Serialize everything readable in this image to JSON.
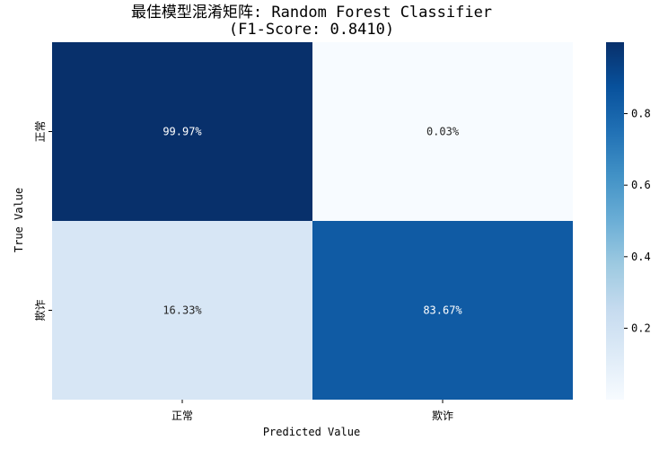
{
  "chart_data": {
    "type": "heatmap",
    "title": "最佳模型混淆矩阵: Random Forest Classifier",
    "subtitle": "(F1-Score: 0.8410)",
    "xlabel": "Predicted Value",
    "ylabel": "True Value",
    "x_categories": [
      "正常",
      "欺诈"
    ],
    "y_categories": [
      "正常",
      "欺诈"
    ],
    "values": [
      [
        0.9997,
        0.0003
      ],
      [
        0.1633,
        0.8367
      ]
    ],
    "annotations": [
      [
        "99.97%",
        "0.03%"
      ],
      [
        "16.33%",
        "83.67%"
      ]
    ],
    "colormap": "Blues",
    "colorbar": {
      "range": [
        0.0003,
        0.9997
      ],
      "ticks": [
        0.2,
        0.4,
        0.6,
        0.8
      ],
      "tick_labels": [
        "0.2",
        "0.4",
        "0.6",
        "0.8"
      ]
    },
    "grid": false,
    "legend": "colorbar-right"
  }
}
